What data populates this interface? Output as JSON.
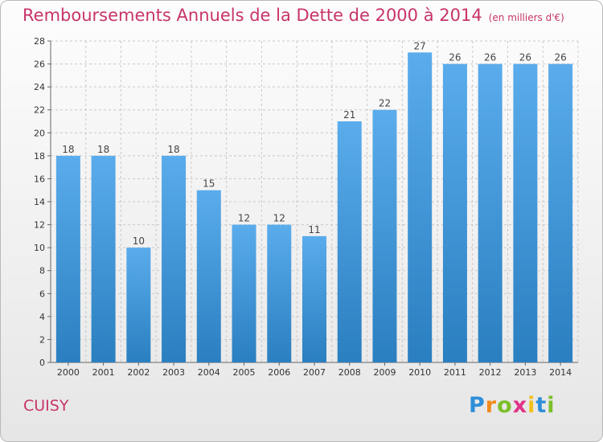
{
  "chart_data": {
    "type": "bar",
    "title": "Remboursements Annuels de la Dette de 2000 à 2014",
    "unit_label": "(en milliers d'€)",
    "categories": [
      "2000",
      "2001",
      "2002",
      "2003",
      "2004",
      "2005",
      "2006",
      "2007",
      "2008",
      "2009",
      "2010",
      "2011",
      "2012",
      "2013",
      "2014"
    ],
    "values": [
      18,
      18,
      10,
      18,
      15,
      12,
      12,
      11,
      21,
      22,
      27,
      26,
      26,
      26,
      26
    ],
    "ylim": [
      0,
      28
    ],
    "yticks": [
      0,
      2,
      4,
      6,
      8,
      10,
      12,
      14,
      16,
      18,
      20,
      22,
      24,
      26,
      28
    ],
    "grid": true,
    "bar_color_top": "#5aacec",
    "bar_color_bottom": "#2a7fc0"
  },
  "commune": "CUISY",
  "logo": {
    "letters": [
      "P",
      "r",
      "o",
      "x",
      "i",
      "t",
      "i"
    ],
    "colors": [
      "#2f8fd8",
      "#f08a1c",
      "#7cbf2a",
      "#e0338a",
      "#f3c21a",
      "#2f8fd8",
      "#7cbf2a"
    ]
  }
}
